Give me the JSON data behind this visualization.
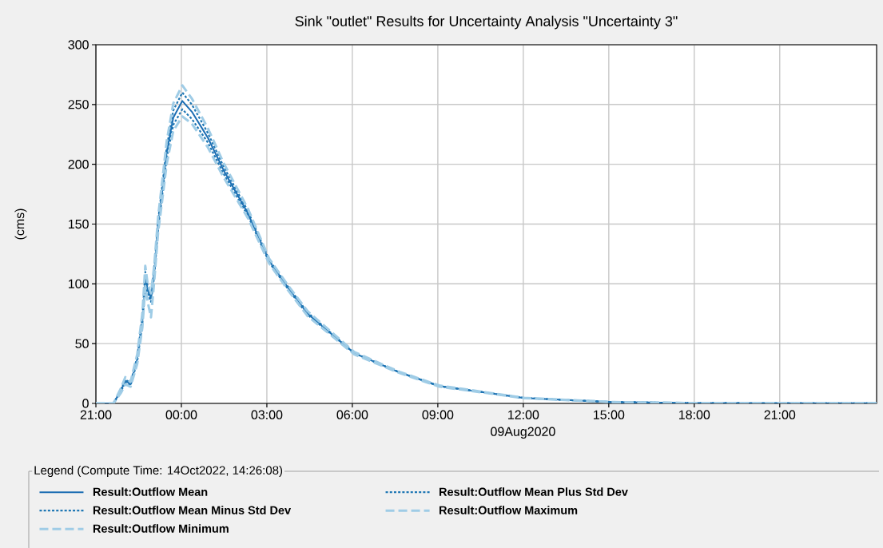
{
  "chart_data": {
    "type": "line",
    "title": "Sink \"outlet\" Results for Uncertainty Analysis \"Uncertainty 3\"",
    "ylabel": "(cms)",
    "xlabel": "09Aug2020",
    "legend_title": "Legend (Compute Time: 14Oct2022, 14:26:08)",
    "x": [
      "2020-08-08T21:00",
      "2020-08-08T21:37",
      "2020-08-08T21:53",
      "2020-08-08T22:02",
      "2020-08-08T22:13",
      "2020-08-08T22:27",
      "2020-08-08T22:38",
      "2020-08-08T22:44",
      "2020-08-08T22:49",
      "2020-08-08T22:56",
      "2020-08-08T23:03",
      "2020-08-08T23:11",
      "2020-08-08T23:20",
      "2020-08-08T23:29",
      "2020-08-08T23:43",
      "2020-08-09T00:02",
      "2020-08-09T00:22",
      "2020-08-09T00:56",
      "2020-08-09T01:29",
      "2020-08-09T02:20",
      "2020-08-09T03:05",
      "2020-08-09T03:44",
      "2020-08-09T04:26",
      "2020-08-09T06:04",
      "2020-08-09T07:39",
      "2020-08-09T09:03",
      "2020-08-09T12:02",
      "2020-08-09T15:07",
      "2020-08-09T18:00",
      "2020-08-09T21:00",
      "2020-08-10T00:24"
    ],
    "series": [
      {
        "name": "Result:Outflow Mean",
        "color": "#1b6db3",
        "line_style": "solid",
        "values": [
          0,
          0,
          11,
          19,
          16,
          37,
          70,
          106,
          95,
          88,
          110,
          150,
          179,
          210,
          239,
          253,
          244,
          222,
          195,
          159,
          119,
          97,
          75,
          42,
          26,
          14.5,
          4.5,
          1.1,
          0.3,
          0.1,
          0.1
        ]
      },
      {
        "name": "Result:Outflow Mean Plus Std Dev",
        "color": "#1f77b4",
        "line_style": "dotted",
        "values": [
          0,
          0,
          12,
          20,
          17,
          39,
          73,
          110,
          98,
          90,
          113,
          153,
          183,
          214,
          245,
          260,
          250,
          226,
          198,
          161,
          120,
          98,
          76,
          42,
          26,
          14.5,
          4.5,
          1.1,
          0.3,
          0.1,
          0.1
        ]
      },
      {
        "name": "Result:Outflow Mean Minus Std Dev",
        "color": "#1f77b4",
        "line_style": "dotted",
        "values": [
          0,
          0,
          10,
          18,
          15,
          35,
          67,
          102,
          92,
          85,
          107,
          146,
          175,
          205,
          233,
          246,
          238,
          218,
          192,
          157,
          118,
          96,
          74,
          42,
          26,
          14.5,
          4.5,
          1.1,
          0.3,
          0.1,
          0.1
        ]
      },
      {
        "name": "Result:Outflow Maximum",
        "color": "#9fcce6",
        "line_style": "dashed",
        "values": [
          0,
          0,
          13,
          22,
          18,
          41,
          76,
          115,
          100,
          92,
          116,
          156,
          187,
          219,
          251,
          266,
          255,
          230,
          201,
          163,
          121,
          99,
          77,
          43,
          26.5,
          15,
          4.6,
          1.1,
          0.3,
          0.1,
          0.1
        ]
      },
      {
        "name": "Result:Outflow Minimum",
        "color": "#9fcce6",
        "line_style": "dashed",
        "values": [
          0,
          0,
          9,
          16,
          14,
          33,
          64,
          98,
          85,
          72,
          103,
          143,
          171,
          200,
          228,
          240,
          234,
          214,
          189,
          155,
          117,
          95,
          73,
          41,
          25.5,
          14,
          4.4,
          1.1,
          0.3,
          0.1,
          0.1
        ]
      }
    ],
    "xlim": [
      "2020-08-08T21:00",
      "2020-08-10T00:24"
    ],
    "xticks": [
      {
        "value": "2020-08-08T21:00",
        "label": "21:00"
      },
      {
        "value": "2020-08-09T00:00",
        "label": "00:00"
      },
      {
        "value": "2020-08-09T03:00",
        "label": "03:00"
      },
      {
        "value": "2020-08-09T06:00",
        "label": "06:00"
      },
      {
        "value": "2020-08-09T09:00",
        "label": "09:00"
      },
      {
        "value": "2020-08-09T12:00",
        "label": "12:00"
      },
      {
        "value": "2020-08-09T15:00",
        "label": "15:00"
      },
      {
        "value": "2020-08-09T18:00",
        "label": "18:00"
      },
      {
        "value": "2020-08-09T21:00",
        "label": "21:00"
      }
    ],
    "ylim": [
      0,
      300
    ],
    "yticks": [
      0,
      50,
      100,
      150,
      200,
      250,
      300
    ],
    "grid": true,
    "legend": "bottom",
    "marker": "none"
  }
}
